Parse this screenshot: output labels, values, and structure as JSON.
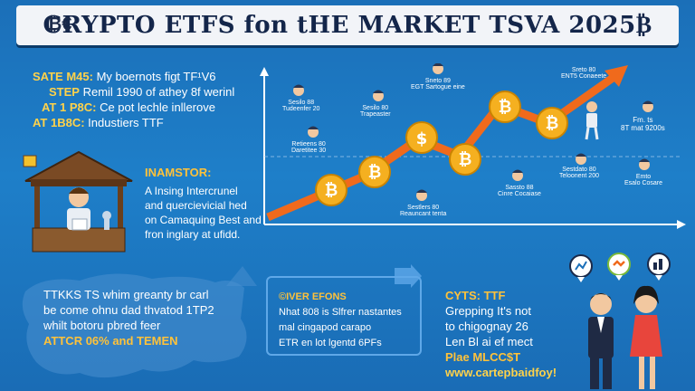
{
  "banner": {
    "logo_text": "₿€",
    "title": "CRYPTO ETFS fon tHE MARKET TSVA 2025₿"
  },
  "left_notes": [
    {
      "lead": "SATE M45:",
      "text": "My boernots figt TF¹V6"
    },
    {
      "lead": "STEP",
      "text": "Remil 1990 of athey 8f werinl"
    },
    {
      "lead": "AT 1 P8C:",
      "text": "Ce pot lechle inllerove"
    },
    {
      "lead": "AT 1B8C:",
      "text": "Industiers TTF"
    }
  ],
  "investor": {
    "label": "INAMSTOR:",
    "lines": [
      "A Insing Intercrunel",
      "and quercievicial hed",
      "on Camaquing Best and",
      "fron inglary at ufidd."
    ]
  },
  "chart_labels": [
    {
      "name": "avatar-label-1",
      "l1": "Sesilo 88",
      "l2": "Tudeenfer 20"
    },
    {
      "name": "avatar-label-2",
      "l1": "Sesilo 80",
      "l2": "Trapeaster"
    },
    {
      "name": "avatar-label-3",
      "l1": "Retieens 80",
      "l2": "Daretitee 30"
    },
    {
      "name": "avatar-label-4",
      "l1": "Sneto 89",
      "l2": "EGT Sartogue eine"
    },
    {
      "name": "avatar-label-5",
      "l1": "Sestlers 80",
      "l2": "Reauncant tenta"
    },
    {
      "name": "avatar-label-6",
      "l1": "Sestdato 80",
      "l2": "Teloonent 200"
    },
    {
      "name": "avatar-label-7",
      "l1": "Sassto 88",
      "l2": "Cinre Cocaiase"
    },
    {
      "name": "avatar-label-8",
      "l1": "Sreto 80",
      "l2": "ENT5 Conaeete"
    },
    {
      "name": "avatar-label-9",
      "l1": "Emto",
      "l2": "Esalo Cosare"
    },
    {
      "name": "avatar-label-10",
      "l1": "Fm. ts",
      "l2": "8T mat 9200s"
    }
  ],
  "map_text": {
    "lines": [
      "TTKKS TS whim greanty br carl",
      "be come ohnu dad thvatod 1TP2",
      "whilt botoru pbred feer"
    ],
    "highlight": "ATTCR 06% and TEMEN"
  },
  "center_box": {
    "title": "©IVER EFONS",
    "lines": [
      "Nhat 808 is Slfrer nastantes",
      "mal cingapod carapo",
      "ETR en lot lgentd 6PFs"
    ]
  },
  "right_text": {
    "title": "CYTS: TTF",
    "lines": [
      "Grepping It's not",
      "to chigognay 26",
      "Len Bl ai ef mect"
    ],
    "promo": "Plae MLCC$T",
    "url": "www.cartepbaidfoy!"
  },
  "colors": {
    "background": "#1e7fc9",
    "accent_yellow": "#ffc23a",
    "coin_gold": "#f5b020",
    "trend_orange": "#f06a1c",
    "banner_bg": "#f2f4f8",
    "banner_text": "#14264a"
  },
  "icons": [
    "bitcoin-coin-icon",
    "dollar-coin-icon",
    "chart-icon",
    "handshake-icon",
    "coins-icon",
    "growth-arrow-icon"
  ]
}
